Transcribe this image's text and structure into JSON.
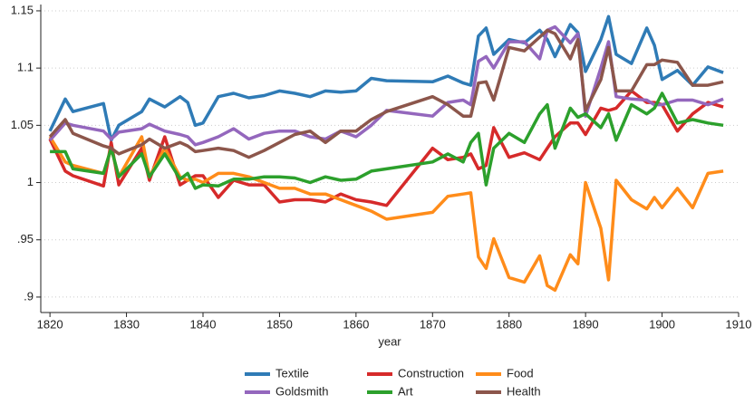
{
  "chart_data": {
    "type": "line",
    "xlabel": "year",
    "x": [
      1820,
      1822,
      1823,
      1827,
      1828,
      1829,
      1832,
      1833,
      1835,
      1837,
      1838,
      1839,
      1840,
      1842,
      1844,
      1846,
      1848,
      1850,
      1852,
      1854,
      1856,
      1858,
      1860,
      1862,
      1864,
      1870,
      1872,
      1874,
      1875,
      1876,
      1877,
      1878,
      1880,
      1882,
      1884,
      1885,
      1886,
      1888,
      1889,
      1890,
      1892,
      1893,
      1894,
      1896,
      1898,
      1899,
      1900,
      1902,
      1904,
      1906,
      1908
    ],
    "series": [
      {
        "name": "Textile",
        "color": "#2f7bb6",
        "values": [
          1.045,
          1.073,
          1.062,
          1.069,
          1.037,
          1.05,
          1.062,
          1.073,
          1.066,
          1.075,
          1.07,
          1.05,
          1.052,
          1.075,
          1.078,
          1.074,
          1.076,
          1.08,
          1.078,
          1.075,
          1.08,
          1.079,
          1.08,
          1.091,
          1.089,
          1.088,
          1.093,
          1.087,
          1.085,
          1.128,
          1.135,
          1.112,
          1.125,
          1.122,
          1.133,
          1.125,
          1.11,
          1.138,
          1.131,
          1.097,
          1.125,
          1.145,
          1.112,
          1.104,
          1.135,
          1.12,
          1.09,
          1.098,
          1.085,
          1.101,
          1.096
        ]
      },
      {
        "name": "Construction",
        "color": "#d62a2a",
        "values": [
          1.038,
          1.01,
          1.006,
          0.997,
          1.035,
          0.998,
          1.03,
          1.002,
          1.04,
          0.998,
          1.002,
          1.006,
          1.006,
          0.987,
          1.002,
          0.998,
          0.998,
          0.983,
          0.985,
          0.985,
          0.983,
          0.99,
          0.985,
          0.983,
          0.98,
          1.03,
          1.02,
          1.022,
          1.025,
          1.012,
          1.015,
          1.048,
          1.022,
          1.026,
          1.02,
          1.03,
          1.04,
          1.052,
          1.052,
          1.042,
          1.065,
          1.063,
          1.065,
          1.08,
          1.07,
          1.07,
          1.068,
          1.045,
          1.06,
          1.07,
          1.066
        ]
      },
      {
        "name": "Food",
        "color": "#ff8c1a",
        "values": [
          1.04,
          1.018,
          1.015,
          1.008,
          1.03,
          1.005,
          1.04,
          1.005,
          1.03,
          1.005,
          1.002,
          1.003,
          1.0,
          1.008,
          1.008,
          1.005,
          1.0,
          0.995,
          0.995,
          0.99,
          0.99,
          0.985,
          0.98,
          0.975,
          0.968,
          0.974,
          0.988,
          0.99,
          0.991,
          0.935,
          0.925,
          0.951,
          0.917,
          0.913,
          0.936,
          0.91,
          0.906,
          0.937,
          0.929,
          1.0,
          0.96,
          0.915,
          1.002,
          0.985,
          0.977,
          0.987,
          0.978,
          0.995,
          0.978,
          1.008,
          1.01
        ]
      },
      {
        "name": "Goldsmith",
        "color": "#9467bd",
        "values": [
          1.037,
          1.052,
          1.05,
          1.045,
          1.038,
          1.044,
          1.047,
          1.051,
          1.045,
          1.042,
          1.04,
          1.033,
          1.035,
          1.04,
          1.047,
          1.038,
          1.043,
          1.045,
          1.045,
          1.04,
          1.038,
          1.045,
          1.04,
          1.05,
          1.063,
          1.058,
          1.07,
          1.072,
          1.068,
          1.106,
          1.11,
          1.1,
          1.123,
          1.123,
          1.108,
          1.133,
          1.136,
          1.122,
          1.13,
          1.058,
          1.1,
          1.123,
          1.075,
          1.073,
          1.072,
          1.068,
          1.068,
          1.072,
          1.072,
          1.068,
          1.073
        ]
      },
      {
        "name": "Art",
        "color": "#2ca02c",
        "values": [
          1.027,
          1.027,
          1.012,
          1.008,
          1.03,
          1.005,
          1.025,
          1.005,
          1.025,
          1.003,
          1.008,
          0.995,
          0.998,
          0.997,
          1.003,
          1.003,
          1.005,
          1.005,
          1.004,
          1.0,
          1.005,
          1.002,
          1.003,
          1.01,
          1.012,
          1.018,
          1.025,
          1.018,
          1.035,
          1.043,
          0.998,
          1.03,
          1.043,
          1.035,
          1.06,
          1.068,
          1.03,
          1.065,
          1.057,
          1.06,
          1.048,
          1.06,
          1.037,
          1.068,
          1.06,
          1.065,
          1.078,
          1.052,
          1.055,
          1.052,
          1.05
        ]
      },
      {
        "name": "Health",
        "color": "#8c564b",
        "values": [
          1.04,
          1.055,
          1.043,
          1.032,
          1.03,
          1.025,
          1.033,
          1.038,
          1.03,
          1.035,
          1.032,
          1.027,
          1.028,
          1.03,
          1.028,
          1.022,
          1.028,
          1.035,
          1.042,
          1.045,
          1.035,
          1.045,
          1.045,
          1.055,
          1.062,
          1.075,
          1.068,
          1.058,
          1.058,
          1.087,
          1.088,
          1.072,
          1.118,
          1.115,
          1.127,
          1.133,
          1.13,
          1.108,
          1.125,
          1.063,
          1.09,
          1.118,
          1.08,
          1.08,
          1.103,
          1.103,
          1.107,
          1.105,
          1.085,
          1.085,
          1.088
        ]
      }
    ],
    "xlim": [
      1818.8,
      1910
    ],
    "xticks": [
      1820,
      1830,
      1840,
      1850,
      1860,
      1870,
      1880,
      1890,
      1900,
      1910
    ],
    "ylim": [
      0.8865,
      1.1555
    ],
    "yticks": [
      1.15,
      1.1,
      1.05,
      1,
      {
        "value": 0.95,
        "label": ".95"
      },
      {
        "value": 0.9,
        "label": ".9"
      }
    ],
    "grid": true
  }
}
